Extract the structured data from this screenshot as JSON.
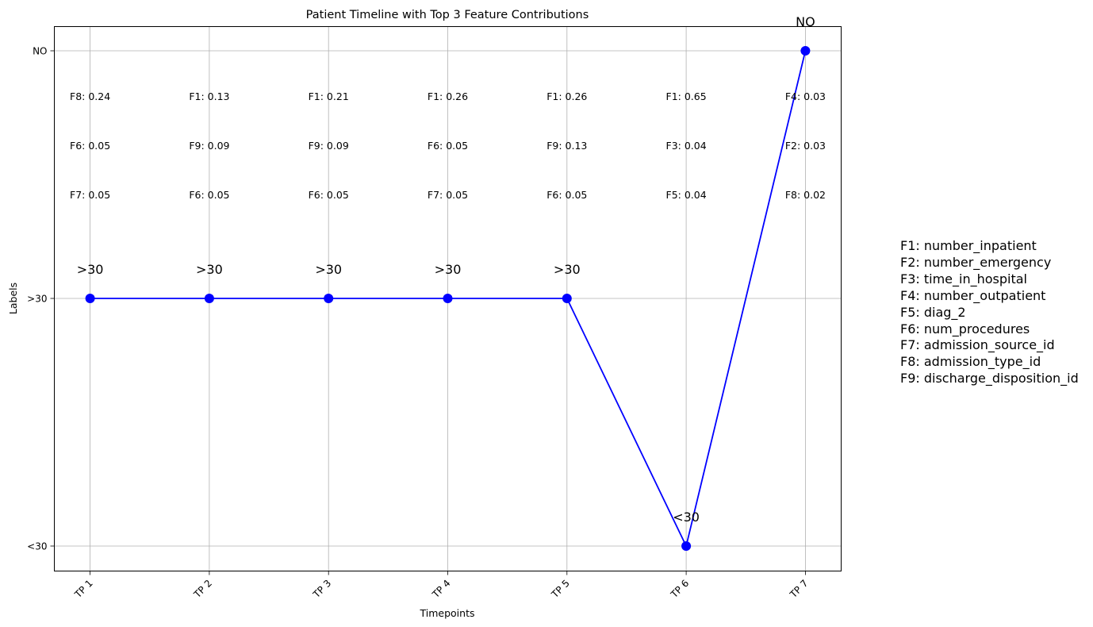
{
  "chart_data": {
    "type": "line",
    "title": "Patient Timeline with Top 3 Feature Contributions",
    "xlabel": "Timepoints",
    "ylabel": "Labels",
    "categories": [
      "TP 1",
      "TP 2",
      "TP 3",
      "TP 4",
      "TP 5",
      "TP 6",
      "TP 7"
    ],
    "y_categories": [
      "<30",
      ">30",
      "NO"
    ],
    "values": [
      ">30",
      ">30",
      ">30",
      ">30",
      ">30",
      "<30",
      "NO"
    ],
    "point_labels": [
      ">30",
      ">30",
      ">30",
      ">30",
      ">30",
      "<30",
      "NO"
    ],
    "feature_contributions": [
      [
        "F8: 0.24",
        "F6: 0.05",
        "F7: 0.05"
      ],
      [
        "F1: 0.13",
        "F9: 0.09",
        "F6: 0.05"
      ],
      [
        "F1: 0.21",
        "F9: 0.09",
        "F6: 0.05"
      ],
      [
        "F1: 0.26",
        "F6: 0.05",
        "F7: 0.05"
      ],
      [
        "F1: 0.26",
        "F9: 0.13",
        "F6: 0.05"
      ],
      [
        "F1: 0.65",
        "F3: 0.04",
        "F5: 0.04"
      ],
      [
        "F4: 0.03",
        "F2: 0.03",
        "F8: 0.02"
      ]
    ],
    "line_color": "#0000ff",
    "grid": true
  },
  "legend": {
    "items": [
      "F1: number_inpatient",
      "F2: number_emergency",
      "F3: time_in_hospital",
      "F4: number_outpatient",
      "F5: diag_2",
      "F6: num_procedures",
      "F7: admission_source_id",
      "F8: admission_type_id",
      "F9: discharge_disposition_id"
    ]
  }
}
